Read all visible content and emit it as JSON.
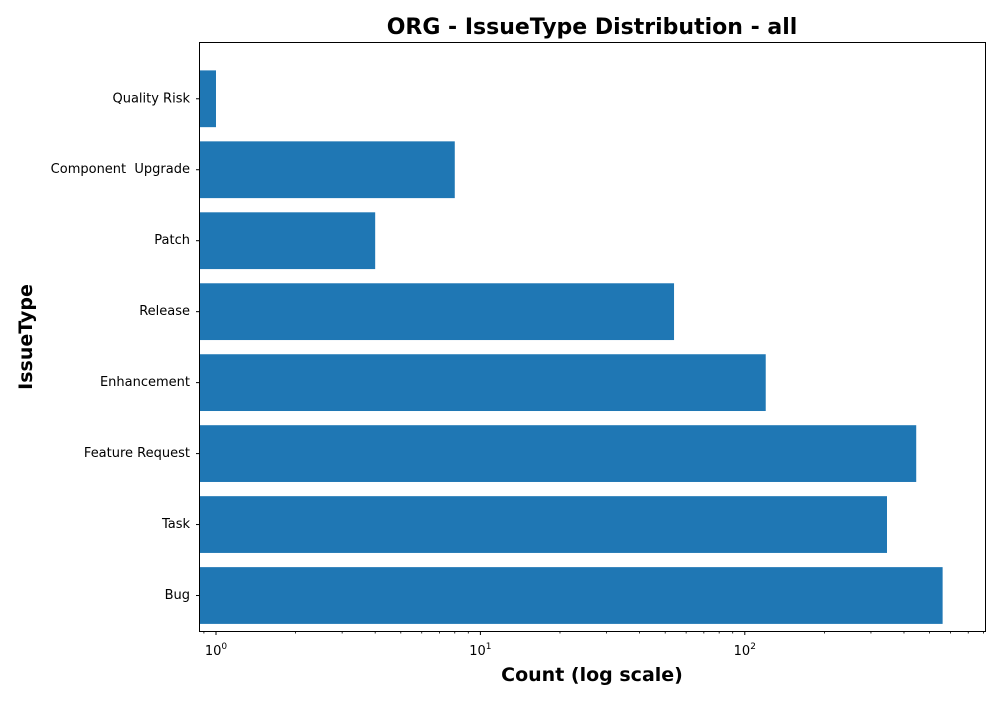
{
  "chart_data": {
    "type": "bar",
    "orientation": "horizontal",
    "title": "ORG - IssueType Distribution - all",
    "xlabel": "Count (log scale)",
    "ylabel": "IssueType",
    "x_scale": "log",
    "xlim": [
      0.87,
      810
    ],
    "x_ticks": [
      {
        "base": "10",
        "exp": "0",
        "value": 1
      },
      {
        "base": "10",
        "exp": "1",
        "value": 10
      },
      {
        "base": "10",
        "exp": "2",
        "value": 100
      }
    ],
    "grid": false,
    "bar_color": "#1f77b4",
    "categories": [
      "Quality Risk",
      "Component  Upgrade",
      "Patch",
      "Release",
      "Enhancement",
      "Feature Request",
      "Task",
      "Bug"
    ],
    "values": [
      1,
      8,
      4,
      54,
      120,
      445,
      345,
      560
    ]
  }
}
